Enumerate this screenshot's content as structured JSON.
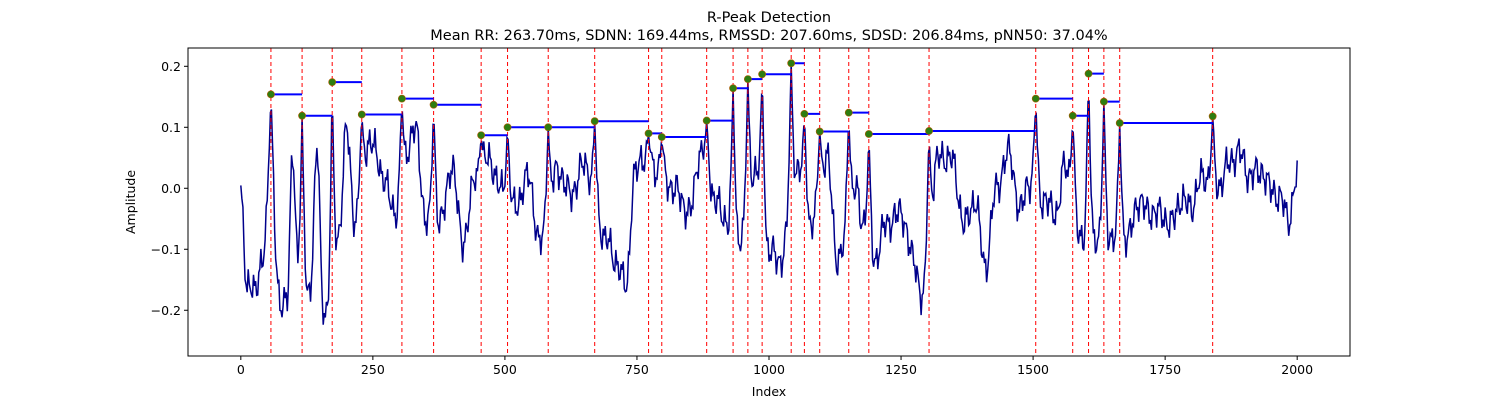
{
  "chart_data": {
    "type": "line",
    "title": "R-Peak Detection",
    "subtitle": "Mean RR: 263.70ms, SDNN: 169.44ms, RMSSD: 207.60ms, SDSD: 206.84ms, pNN50: 37.04%",
    "xlabel": "Index",
    "ylabel": "Amplitude",
    "xlim": [
      -100,
      2100
    ],
    "ylim": [
      -0.275,
      0.23
    ],
    "xticks": [
      0,
      250,
      500,
      750,
      1000,
      1250,
      1500,
      1750,
      2000
    ],
    "xtick_labels": [
      "0",
      "250",
      "500",
      "750",
      "1000",
      "1250",
      "1500",
      "1750",
      "2000"
    ],
    "yticks": [
      -0.2,
      -0.1,
      0.0,
      0.1,
      0.2
    ],
    "ytick_labels": [
      "−0.2",
      "−0.1",
      "0.0",
      "0.1",
      "0.2"
    ],
    "grid": false,
    "colors": {
      "signal": "#00008b",
      "peak_marker": "#2e7d10",
      "peak_line": "#ff0000",
      "rr_interval": "#0000ff"
    },
    "peaks": [
      {
        "x": 57,
        "y": 0.154
      },
      {
        "x": 116,
        "y": 0.119
      },
      {
        "x": 173,
        "y": 0.174
      },
      {
        "x": 229,
        "y": 0.121
      },
      {
        "x": 305,
        "y": 0.147
      },
      {
        "x": 365,
        "y": 0.137
      },
      {
        "x": 455,
        "y": 0.087
      },
      {
        "x": 505,
        "y": 0.1
      },
      {
        "x": 582,
        "y": 0.1
      },
      {
        "x": 670,
        "y": 0.11
      },
      {
        "x": 772,
        "y": 0.09
      },
      {
        "x": 797,
        "y": 0.084
      },
      {
        "x": 882,
        "y": 0.111
      },
      {
        "x": 932,
        "y": 0.164
      },
      {
        "x": 960,
        "y": 0.179
      },
      {
        "x": 987,
        "y": 0.187
      },
      {
        "x": 1042,
        "y": 0.205
      },
      {
        "x": 1067,
        "y": 0.122
      },
      {
        "x": 1096,
        "y": 0.093
      },
      {
        "x": 1151,
        "y": 0.124
      },
      {
        "x": 1189,
        "y": 0.089
      },
      {
        "x": 1303,
        "y": 0.094
      },
      {
        "x": 1505,
        "y": 0.147
      },
      {
        "x": 1575,
        "y": 0.119
      },
      {
        "x": 1605,
        "y": 0.188
      },
      {
        "x": 1634,
        "y": 0.142
      },
      {
        "x": 1664,
        "y": 0.107
      },
      {
        "x": 1840,
        "y": 0.118
      }
    ],
    "signal": {
      "x_start": 0,
      "x_end": 2000,
      "baseline_anchors": [
        [
          0,
          -0.01
        ],
        [
          12,
          -0.16
        ],
        [
          25,
          -0.17
        ],
        [
          40,
          -0.12
        ],
        [
          57,
          0.0
        ],
        [
          75,
          -0.2
        ],
        [
          88,
          -0.17
        ],
        [
          98,
          0.05
        ],
        [
          108,
          -0.12
        ],
        [
          130,
          -0.18
        ],
        [
          145,
          0.07
        ],
        [
          155,
          -0.2
        ],
        [
          168,
          -0.2
        ],
        [
          185,
          -0.08
        ],
        [
          200,
          0.1
        ],
        [
          215,
          -0.05
        ],
        [
          245,
          0.08
        ],
        [
          270,
          0.02
        ],
        [
          290,
          -0.04
        ],
        [
          330,
          0.1
        ],
        [
          350,
          -0.05
        ],
        [
          380,
          -0.05
        ],
        [
          400,
          0.04
        ],
        [
          420,
          -0.09
        ],
        [
          445,
          0.02
        ],
        [
          470,
          0.05
        ],
        [
          490,
          0.0
        ],
        [
          520,
          -0.03
        ],
        [
          545,
          0.02
        ],
        [
          565,
          -0.09
        ],
        [
          600,
          0.03
        ],
        [
          625,
          -0.01
        ],
        [
          650,
          0.04
        ],
        [
          690,
          -0.08
        ],
        [
          710,
          -0.12
        ],
        [
          730,
          -0.16
        ],
        [
          745,
          0.02
        ],
        [
          760,
          0.05
        ],
        [
          785,
          0.03
        ],
        [
          820,
          0.0
        ],
        [
          850,
          -0.04
        ],
        [
          870,
          0.06
        ],
        [
          900,
          -0.02
        ],
        [
          915,
          -0.05
        ],
        [
          945,
          -0.08
        ],
        [
          975,
          0.03
        ],
        [
          1000,
          -0.1
        ],
        [
          1020,
          -0.12
        ],
        [
          1055,
          0.03
        ],
        [
          1080,
          -0.06
        ],
        [
          1110,
          0.05
        ],
        [
          1130,
          -0.12
        ],
        [
          1165,
          0.0
        ],
        [
          1175,
          -0.05
        ],
        [
          1200,
          -0.12
        ],
        [
          1220,
          -0.06
        ],
        [
          1250,
          -0.04
        ],
        [
          1275,
          -0.12
        ],
        [
          1290,
          -0.18
        ],
        [
          1320,
          0.05
        ],
        [
          1345,
          0.05
        ],
        [
          1370,
          -0.06
        ],
        [
          1390,
          -0.02
        ],
        [
          1410,
          -0.13
        ],
        [
          1430,
          0.0
        ],
        [
          1455,
          0.06
        ],
        [
          1475,
          -0.04
        ],
        [
          1490,
          0.01
        ],
        [
          1520,
          -0.02
        ],
        [
          1545,
          -0.04
        ],
        [
          1560,
          0.04
        ],
        [
          1590,
          -0.08
        ],
        [
          1620,
          -0.08
        ],
        [
          1650,
          -0.08
        ],
        [
          1680,
          -0.08
        ],
        [
          1700,
          -0.02
        ],
        [
          1720,
          -0.04
        ],
        [
          1740,
          -0.04
        ],
        [
          1760,
          -0.06
        ],
        [
          1780,
          -0.02
        ],
        [
          1800,
          -0.03
        ],
        [
          1820,
          0.02
        ],
        [
          1850,
          0.0
        ],
        [
          1870,
          0.04
        ],
        [
          1890,
          0.06
        ],
        [
          1910,
          0.02
        ],
        [
          1930,
          0.03
        ],
        [
          1950,
          0.0
        ],
        [
          1970,
          -0.02
        ],
        [
          1985,
          -0.05
        ],
        [
          2000,
          0.02
        ]
      ]
    }
  }
}
